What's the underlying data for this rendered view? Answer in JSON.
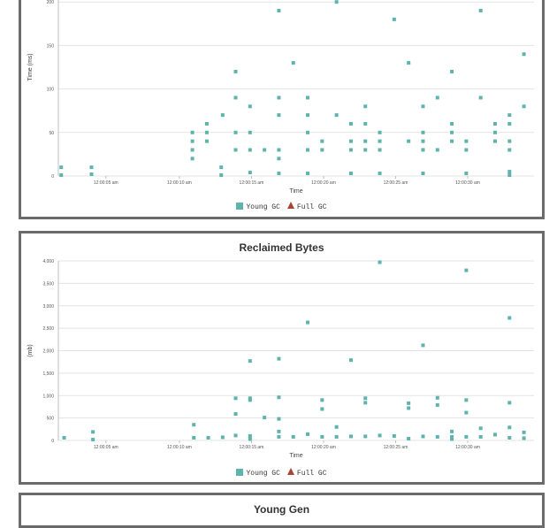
{
  "colors": {
    "young_gc": "#5fb3ad",
    "full_gc": "#a94438",
    "grid": "#e3e3e3"
  },
  "legend": {
    "young_label": "Young GC",
    "full_label": "Full GC"
  },
  "panel3_title": "Young Gen",
  "chart_data": [
    {
      "type": "scatter",
      "title": "",
      "xlabel": "Time",
      "ylabel": "Time (ms)",
      "ylim": [
        0,
        250
      ],
      "yticks": [
        0,
        50,
        100,
        150,
        200
      ],
      "ytick_labels": [
        "0",
        "50",
        "100",
        "150",
        "200"
      ],
      "xlim": [
        0,
        33
      ],
      "xticks": [
        3.3,
        8.4,
        13.4,
        18.4,
        23.4,
        28.4
      ],
      "xtick_labels": [
        "12:00:05 am",
        "12:00:10 am",
        "12:00:15 am",
        "12:00:20 am",
        "12:00:25 am",
        "12:00:30 am"
      ],
      "grid": true,
      "legend_position": "bottom",
      "series": [
        {
          "name": "Young GC",
          "points": [
            [
              0.2,
              10
            ],
            [
              0.2,
              1
            ],
            [
              2.3,
              10
            ],
            [
              2.3,
              2
            ],
            [
              9.3,
              50
            ],
            [
              9.3,
              40
            ],
            [
              9.3,
              30
            ],
            [
              9.3,
              20
            ],
            [
              10.3,
              60
            ],
            [
              10.3,
              50
            ],
            [
              10.3,
              40
            ],
            [
              11.3,
              10
            ],
            [
              11.3,
              1
            ],
            [
              11.4,
              70
            ],
            [
              12.3,
              120
            ],
            [
              12.3,
              90
            ],
            [
              12.3,
              50
            ],
            [
              12.3,
              30
            ],
            [
              13.3,
              80
            ],
            [
              13.3,
              50
            ],
            [
              13.3,
              30
            ],
            [
              13.3,
              4
            ],
            [
              14.3,
              30
            ],
            [
              15.3,
              190
            ],
            [
              15.3,
              90
            ],
            [
              15.3,
              70
            ],
            [
              15.3,
              30
            ],
            [
              15.3,
              20
            ],
            [
              15.3,
              3
            ],
            [
              16.3,
              130
            ],
            [
              17.3,
              90
            ],
            [
              17.3,
              70
            ],
            [
              17.3,
              50
            ],
            [
              17.3,
              30
            ],
            [
              17.3,
              3
            ],
            [
              18.3,
              40
            ],
            [
              18.3,
              30
            ],
            [
              19.3,
              200
            ],
            [
              19.3,
              70
            ],
            [
              20.3,
              60
            ],
            [
              20.3,
              40
            ],
            [
              20.3,
              30
            ],
            [
              20.3,
              3
            ],
            [
              21.3,
              80
            ],
            [
              21.3,
              60
            ],
            [
              21.3,
              40
            ],
            [
              21.3,
              30
            ],
            [
              22.3,
              50
            ],
            [
              22.3,
              40
            ],
            [
              22.3,
              30
            ],
            [
              22.3,
              3
            ],
            [
              23.3,
              180
            ],
            [
              24.3,
              130
            ],
            [
              24.3,
              40
            ],
            [
              25.3,
              80
            ],
            [
              25.3,
              50
            ],
            [
              25.3,
              40
            ],
            [
              25.3,
              30
            ],
            [
              25.3,
              3
            ],
            [
              26.3,
              90
            ],
            [
              26.3,
              30
            ],
            [
              27.3,
              120
            ],
            [
              27.3,
              60
            ],
            [
              27.3,
              50
            ],
            [
              27.3,
              40
            ],
            [
              28.3,
              40
            ],
            [
              28.3,
              30
            ],
            [
              28.3,
              3
            ],
            [
              29.3,
              190
            ],
            [
              29.3,
              90
            ],
            [
              30.3,
              60
            ],
            [
              30.3,
              50
            ],
            [
              30.3,
              40
            ],
            [
              31.3,
              70
            ],
            [
              31.3,
              60
            ],
            [
              31.3,
              40
            ],
            [
              31.3,
              30
            ],
            [
              31.3,
              5
            ],
            [
              31.3,
              1
            ],
            [
              32.3,
              140
            ],
            [
              32.3,
              80
            ]
          ]
        },
        {
          "name": "Full GC",
          "points": []
        }
      ]
    },
    {
      "type": "scatter",
      "title": "Reclaimed Bytes",
      "xlabel": "Time",
      "ylabel": "(mb)",
      "ylim": [
        0,
        4000
      ],
      "yticks": [
        0,
        500,
        1000,
        1500,
        2000,
        2500,
        3000,
        3500,
        4000
      ],
      "ytick_labels": [
        "0",
        "500",
        "1,000",
        "1,500",
        "2,000",
        "2,500",
        "3,000",
        "3,500",
        "4,000"
      ],
      "xlim": [
        0,
        33
      ],
      "xticks": [
        3.3,
        8.4,
        13.4,
        18.4,
        23.4,
        28.4
      ],
      "xtick_labels": [
        "12:00:05 am",
        "12:00:10 am",
        "12:00:15 am",
        "12:00:20 am",
        "12:00:25 am",
        "12:00:30 am"
      ],
      "grid": true,
      "legend_position": "bottom",
      "series": [
        {
          "name": "Young GC",
          "points": [
            [
              0.4,
              60
            ],
            [
              2.4,
              190
            ],
            [
              2.4,
              20
            ],
            [
              9.4,
              350
            ],
            [
              9.4,
              60
            ],
            [
              10.4,
              60
            ],
            [
              11.4,
              70
            ],
            [
              12.3,
              940
            ],
            [
              12.3,
              590
            ],
            [
              12.3,
              110
            ],
            [
              13.3,
              1770
            ],
            [
              13.3,
              900
            ],
            [
              13.3,
              940
            ],
            [
              13.3,
              100
            ],
            [
              13.3,
              30
            ],
            [
              14.3,
              510
            ],
            [
              15.3,
              1820
            ],
            [
              15.3,
              960
            ],
            [
              15.3,
              480
            ],
            [
              15.3,
              200
            ],
            [
              15.3,
              80
            ],
            [
              16.3,
              80
            ],
            [
              17.3,
              2630
            ],
            [
              17.3,
              140
            ],
            [
              18.3,
              900
            ],
            [
              18.3,
              700
            ],
            [
              18.3,
              80
            ],
            [
              19.3,
              300
            ],
            [
              19.3,
              80
            ],
            [
              20.3,
              1790
            ],
            [
              20.3,
              90
            ],
            [
              21.3,
              940
            ],
            [
              21.3,
              840
            ],
            [
              21.3,
              90
            ],
            [
              22.3,
              3970
            ],
            [
              22.3,
              110
            ],
            [
              23.3,
              100
            ],
            [
              24.3,
              830
            ],
            [
              24.3,
              720
            ],
            [
              24.3,
              40
            ],
            [
              25.3,
              2120
            ],
            [
              25.3,
              90
            ],
            [
              26.3,
              950
            ],
            [
              26.3,
              790
            ],
            [
              26.3,
              80
            ],
            [
              27.3,
              200
            ],
            [
              27.3,
              80
            ],
            [
              27.3,
              30
            ],
            [
              28.3,
              3790
            ],
            [
              28.3,
              900
            ],
            [
              28.3,
              620
            ],
            [
              28.3,
              80
            ],
            [
              29.3,
              270
            ],
            [
              29.3,
              80
            ],
            [
              30.3,
              130
            ],
            [
              31.3,
              2730
            ],
            [
              31.3,
              840
            ],
            [
              31.3,
              290
            ],
            [
              31.3,
              60
            ],
            [
              32.3,
              180
            ],
            [
              32.3,
              50
            ]
          ]
        },
        {
          "name": "Full GC",
          "points": []
        }
      ]
    }
  ]
}
